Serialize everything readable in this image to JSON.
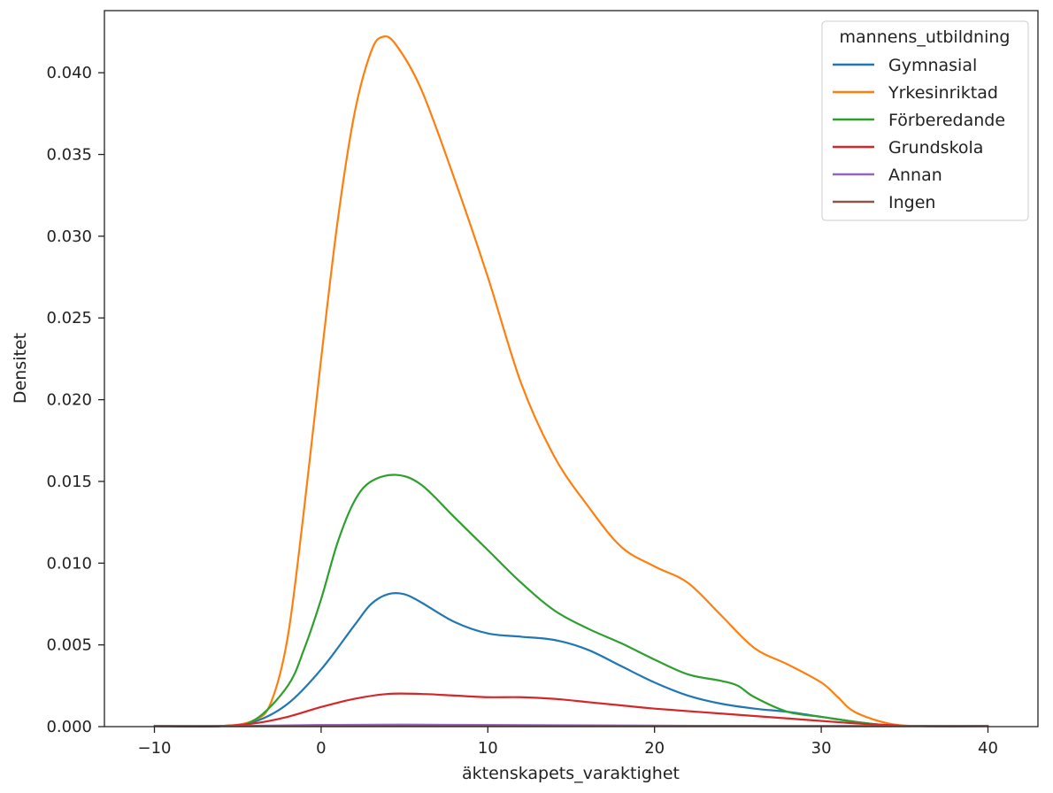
{
  "chart_data": {
    "type": "line",
    "title": "",
    "xlabel": "äktenskapets_varaktighet",
    "ylabel": "Densitet",
    "xlim": [
      -13,
      43
    ],
    "ylim": [
      0,
      0.0438
    ],
    "x_ticks": [
      -10,
      0,
      10,
      20,
      30,
      40
    ],
    "x_tick_labels": [
      "−10",
      "0",
      "10",
      "20",
      "30",
      "40"
    ],
    "y_ticks": [
      0,
      0.005,
      0.01,
      0.015,
      0.02,
      0.025,
      0.03,
      0.035,
      0.04
    ],
    "y_tick_labels": [
      "0.000",
      "0.005",
      "0.010",
      "0.015",
      "0.020",
      "0.025",
      "0.030",
      "0.035",
      "0.040"
    ],
    "grid": false,
    "legend": {
      "title": "mannens_utbildning",
      "placement": "top-right"
    },
    "series": [
      {
        "name": "Gymnasial",
        "color": "#1f77b4",
        "points": [
          [
            -10,
            0
          ],
          [
            -6,
            3e-05
          ],
          [
            -4,
            0.0003
          ],
          [
            -2,
            0.0014
          ],
          [
            0,
            0.0035
          ],
          [
            2,
            0.0062
          ],
          [
            3,
            0.0075
          ],
          [
            4,
            0.0081
          ],
          [
            5,
            0.0081
          ],
          [
            6,
            0.0076
          ],
          [
            8,
            0.0064
          ],
          [
            10,
            0.0057
          ],
          [
            12,
            0.0055
          ],
          [
            14,
            0.0053
          ],
          [
            16,
            0.0047
          ],
          [
            18,
            0.0037
          ],
          [
            20,
            0.0027
          ],
          [
            22,
            0.0019
          ],
          [
            24,
            0.0014
          ],
          [
            26,
            0.0011
          ],
          [
            28,
            0.0009
          ],
          [
            30,
            0.0006
          ],
          [
            32,
            0.0003
          ],
          [
            34,
            8e-05
          ],
          [
            36,
            1e-05
          ],
          [
            40,
            0
          ]
        ]
      },
      {
        "name": "Yrkesinriktad",
        "color": "#ff7f0e",
        "points": [
          [
            -10,
            0
          ],
          [
            -6,
            2e-05
          ],
          [
            -4,
            0.0004
          ],
          [
            -3,
            0.0015
          ],
          [
            -2,
            0.0055
          ],
          [
            -1,
            0.0135
          ],
          [
            0,
            0.0225
          ],
          [
            1,
            0.031
          ],
          [
            2,
            0.0375
          ],
          [
            3,
            0.0413
          ],
          [
            3.7,
            0.0422
          ],
          [
            4.5,
            0.0417
          ],
          [
            6,
            0.039
          ],
          [
            8,
            0.0335
          ],
          [
            10,
            0.0275
          ],
          [
            12,
            0.021
          ],
          [
            14,
            0.0165
          ],
          [
            16,
            0.0135
          ],
          [
            18,
            0.011
          ],
          [
            20,
            0.0098
          ],
          [
            22,
            0.0088
          ],
          [
            24,
            0.0068
          ],
          [
            26,
            0.0048
          ],
          [
            28,
            0.0038
          ],
          [
            30,
            0.0027
          ],
          [
            31,
            0.0018
          ],
          [
            32,
            0.0009
          ],
          [
            34,
            0.0002
          ],
          [
            36,
            3e-05
          ],
          [
            40,
            0
          ]
        ]
      },
      {
        "name": "Förberedande",
        "color": "#2ca02c",
        "points": [
          [
            -10,
            0
          ],
          [
            -6,
            2e-05
          ],
          [
            -4,
            0.0004
          ],
          [
            -2,
            0.0025
          ],
          [
            -1,
            0.0048
          ],
          [
            0,
            0.0078
          ],
          [
            1,
            0.0113
          ],
          [
            2,
            0.0138
          ],
          [
            3,
            0.015
          ],
          [
            4.5,
            0.0154
          ],
          [
            6,
            0.0148
          ],
          [
            8,
            0.0128
          ],
          [
            10,
            0.0108
          ],
          [
            12,
            0.0088
          ],
          [
            14,
            0.0071
          ],
          [
            16,
            0.006
          ],
          [
            18,
            0.0051
          ],
          [
            20,
            0.0041
          ],
          [
            22,
            0.0032
          ],
          [
            24,
            0.0028
          ],
          [
            25,
            0.0025
          ],
          [
            26,
            0.0018
          ],
          [
            28,
            0.0009
          ],
          [
            30,
            0.0006
          ],
          [
            32,
            0.0003
          ],
          [
            34,
            8e-05
          ],
          [
            36,
            1e-05
          ],
          [
            40,
            0
          ]
        ]
      },
      {
        "name": "Grundskola",
        "color": "#d62728",
        "points": [
          [
            -10,
            0
          ],
          [
            -6,
            5e-05
          ],
          [
            -4,
            0.0002
          ],
          [
            -2,
            0.0006
          ],
          [
            0,
            0.0012
          ],
          [
            2,
            0.0017
          ],
          [
            4,
            0.002
          ],
          [
            6,
            0.002
          ],
          [
            8,
            0.0019
          ],
          [
            10,
            0.0018
          ],
          [
            12,
            0.0018
          ],
          [
            14,
            0.0017
          ],
          [
            16,
            0.0015
          ],
          [
            18,
            0.0013
          ],
          [
            20,
            0.0011
          ],
          [
            24,
            0.0008
          ],
          [
            28,
            0.0005
          ],
          [
            32,
            0.0002
          ],
          [
            34,
            0.0001
          ],
          [
            36,
            2e-05
          ],
          [
            40,
            0
          ]
        ]
      },
      {
        "name": "Annan",
        "color": "#9467bd",
        "points": [
          [
            -10,
            0
          ],
          [
            -6,
            1e-05
          ],
          [
            -3,
            6e-05
          ],
          [
            0,
            0.0001
          ],
          [
            5,
            0.00012
          ],
          [
            10,
            0.0001
          ],
          [
            15,
            8e-05
          ],
          [
            20,
            6e-05
          ],
          [
            25,
            4e-05
          ],
          [
            30,
            2e-05
          ],
          [
            34,
            1e-05
          ],
          [
            40,
            0
          ]
        ]
      },
      {
        "name": "Ingen",
        "color": "#8c564b",
        "points": [
          [
            -10,
            0
          ],
          [
            0,
            2e-05
          ],
          [
            10,
            2e-05
          ],
          [
            20,
            1e-05
          ],
          [
            30,
            5e-06
          ],
          [
            40,
            0
          ]
        ]
      }
    ]
  }
}
